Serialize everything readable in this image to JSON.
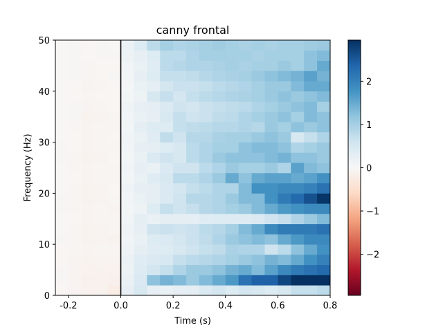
{
  "chart_data": {
    "type": "heatmap",
    "title": "canny frontal",
    "xlabel": "Time (s)",
    "ylabel": "Frequency (Hz)",
    "xlim": [
      -0.25,
      0.8
    ],
    "ylim": [
      0,
      50
    ],
    "x_ticks": [
      "-0.2",
      "0.0",
      "0.2",
      "0.4",
      "0.6",
      "0.8"
    ],
    "x_tick_values": [
      -0.2,
      0.0,
      0.2,
      0.4,
      0.6,
      0.8
    ],
    "y_ticks": [
      "0",
      "10",
      "20",
      "30",
      "40",
      "50"
    ],
    "y_tick_values": [
      0,
      10,
      20,
      30,
      40,
      50
    ],
    "colorbar": {
      "colormap": "RdBu_r",
      "vmin": -2.95,
      "vmax": 2.95,
      "ticks": [
        "−2",
        "−1",
        "0",
        "1",
        "2"
      ],
      "tick_values": [
        -2,
        -1,
        0,
        1,
        2
      ]
    },
    "vline_x": 0.0,
    "time_bin_width": 0.05,
    "freq_bin_height": 2,
    "columns": [
      {
        "t0": -0.25,
        "values": [
          -0.05,
          -0.04,
          -0.04,
          -0.05,
          -0.05,
          -0.04,
          -0.03,
          -0.03,
          -0.04,
          -0.04,
          -0.03,
          -0.03,
          -0.03,
          -0.04,
          -0.04,
          -0.03,
          -0.03,
          -0.02,
          -0.02,
          -0.03,
          -0.03,
          -0.02,
          -0.02,
          -0.02,
          -0.02
        ]
      },
      {
        "t0": -0.2,
        "values": [
          -0.08,
          -0.09,
          -0.08,
          -0.08,
          -0.07,
          -0.07,
          -0.06,
          -0.05,
          -0.06,
          -0.07,
          -0.06,
          -0.05,
          -0.06,
          -0.06,
          -0.05,
          -0.05,
          -0.06,
          -0.04,
          -0.04,
          -0.05,
          -0.05,
          -0.04,
          -0.04,
          -0.04,
          -0.04
        ]
      },
      {
        "t0": -0.15,
        "values": [
          -0.12,
          -0.14,
          -0.12,
          -0.1,
          -0.09,
          -0.1,
          -0.11,
          -0.09,
          -0.08,
          -0.1,
          -0.1,
          -0.08,
          -0.09,
          -0.1,
          -0.09,
          -0.08,
          -0.09,
          -0.1,
          -0.08,
          -0.07,
          -0.08,
          -0.06,
          -0.06,
          -0.05,
          -0.05
        ]
      },
      {
        "t0": -0.1,
        "values": [
          -0.1,
          -0.12,
          -0.1,
          -0.08,
          -0.07,
          -0.08,
          -0.09,
          -0.07,
          -0.06,
          -0.08,
          -0.08,
          -0.06,
          -0.07,
          -0.08,
          -0.07,
          -0.06,
          -0.07,
          -0.08,
          -0.06,
          -0.05,
          -0.06,
          -0.05,
          -0.05,
          -0.04,
          -0.04
        ]
      },
      {
        "t0": -0.05,
        "values": [
          -0.22,
          -0.14,
          -0.12,
          -0.09,
          -0.07,
          -0.1,
          -0.07,
          -0.06,
          -0.08,
          -0.06,
          -0.05,
          -0.07,
          -0.07,
          -0.05,
          -0.06,
          -0.05,
          -0.06,
          -0.07,
          -0.05,
          -0.05,
          -0.05,
          -0.04,
          -0.05,
          -0.04,
          -0.03
        ]
      },
      {
        "t0": 0.0,
        "values": [
          0.25,
          0.2,
          0.15,
          0.18,
          0.12,
          0.1,
          0.12,
          0.1,
          0.08,
          0.1,
          0.12,
          0.08,
          0.1,
          0.08,
          0.1,
          0.12,
          0.08,
          0.1,
          0.12,
          0.08,
          0.06,
          0.08,
          0.1,
          0.15,
          0.18
        ]
      },
      {
        "t0": 0.05,
        "values": [
          0.5,
          0.45,
          0.4,
          0.35,
          0.3,
          0.2,
          0.25,
          0.3,
          0.15,
          0.2,
          0.25,
          0.2,
          0.25,
          0.2,
          0.25,
          0.2,
          0.3,
          0.2,
          0.25,
          0.15,
          0.2,
          0.25,
          0.2,
          0.25,
          0.4
        ]
      },
      {
        "t0": 0.1,
        "values": [
          0.25,
          1.2,
          0.55,
          0.45,
          0.35,
          0.4,
          0.6,
          0.2,
          0.4,
          0.3,
          0.3,
          0.35,
          0.2,
          0.45,
          0.3,
          0.35,
          0.4,
          0.25,
          0.3,
          0.5,
          0.3,
          0.4,
          0.35,
          0.4,
          0.8
        ]
      },
      {
        "t0": 0.15,
        "values": [
          0.2,
          1.4,
          0.7,
          0.5,
          0.4,
          0.45,
          0.65,
          0.3,
          0.7,
          0.45,
          0.45,
          0.5,
          0.45,
          0.6,
          0.4,
          0.75,
          0.4,
          0.5,
          0.45,
          0.7,
          0.55,
          0.7,
          0.8,
          0.8,
          1.0
        ]
      },
      {
        "t0": 0.2,
        "values": [
          0.25,
          1.3,
          0.9,
          0.7,
          0.5,
          0.55,
          0.6,
          0.3,
          0.6,
          0.6,
          0.55,
          0.8,
          0.6,
          0.5,
          0.5,
          0.6,
          0.7,
          0.7,
          0.6,
          0.55,
          0.65,
          0.7,
          0.85,
          0.8,
          0.9
        ]
      },
      {
        "t0": 0.25,
        "values": [
          0.3,
          1.1,
          1.1,
          0.8,
          0.6,
          0.65,
          0.65,
          0.3,
          0.7,
          0.85,
          0.7,
          0.8,
          0.6,
          0.8,
          0.8,
          0.85,
          0.75,
          0.6,
          0.55,
          0.7,
          0.65,
          0.75,
          0.9,
          0.9,
          0.95
        ]
      },
      {
        "t0": 0.3,
        "values": [
          0.45,
          1.3,
          1.1,
          0.85,
          0.7,
          0.75,
          0.8,
          0.35,
          0.85,
          0.85,
          0.8,
          0.9,
          0.8,
          0.9,
          0.9,
          0.85,
          0.8,
          0.65,
          0.65,
          0.8,
          0.7,
          0.85,
          0.9,
          1.0,
          1.0
        ]
      },
      {
        "t0": 0.35,
        "values": [
          0.55,
          1.5,
          1.2,
          0.9,
          0.75,
          0.9,
          0.85,
          0.4,
          0.9,
          0.9,
          0.9,
          1.1,
          0.9,
          1.1,
          1.0,
          0.95,
          0.85,
          0.75,
          0.7,
          0.85,
          0.8,
          0.9,
          0.95,
          1.0,
          1.05
        ]
      },
      {
        "t0": 0.4,
        "values": [
          0.4,
          1.7,
          1.4,
          1.0,
          0.95,
          1.1,
          1.0,
          0.4,
          1.0,
          1.1,
          0.9,
          1.5,
          1.1,
          1.2,
          1.0,
          1.0,
          0.85,
          0.8,
          0.75,
          0.9,
          0.85,
          0.95,
          1.0,
          1.0,
          1.0
        ]
      },
      {
        "t0": 0.45,
        "values": [
          0.55,
          2.2,
          1.5,
          1.1,
          0.9,
          1.2,
          1.3,
          0.4,
          1.1,
          1.3,
          1.3,
          1.2,
          1.0,
          1.2,
          1.2,
          1.0,
          0.9,
          0.9,
          0.8,
          0.95,
          0.9,
          1.0,
          0.95,
          1.0,
          0.95
        ]
      },
      {
        "t0": 0.5,
        "values": [
          0.5,
          2.4,
          1.3,
          1.2,
          0.9,
          1.3,
          1.5,
          0.45,
          1.3,
          1.3,
          1.8,
          1.5,
          1.0,
          1.2,
          1.3,
          1.1,
          0.85,
          1.0,
          0.9,
          1.0,
          1.0,
          1.1,
          1.0,
          0.95,
          1.0
        ]
      },
      {
        "t0": 0.55,
        "values": [
          0.4,
          2.4,
          1.6,
          1.4,
          0.6,
          1.2,
          1.9,
          0.6,
          1.5,
          1.8,
          1.8,
          1.6,
          1.1,
          1.3,
          1.3,
          1.2,
          1.1,
          1.1,
          1.0,
          1.1,
          1.1,
          1.2,
          1.0,
          1.0,
          0.95
        ]
      },
      {
        "t0": 0.6,
        "values": [
          0.5,
          2.7,
          1.9,
          1.3,
          0.8,
          1.5,
          2.1,
          0.7,
          1.7,
          2.1,
          1.9,
          1.6,
          0.9,
          1.4,
          1.2,
          1.1,
          1.0,
          1.2,
          1.1,
          1.2,
          1.1,
          1.3,
          1.1,
          1.0,
          1.0
        ]
      },
      {
        "t0": 0.65,
        "values": [
          0.7,
          2.95,
          2.1,
          1.5,
          1.2,
          1.7,
          2.1,
          0.9,
          1.8,
          2.3,
          1.9,
          1.5,
          1.6,
          1.2,
          0.9,
          0.5,
          1.2,
          1.0,
          1.2,
          1.1,
          1.3,
          1.4,
          1.0,
          1.0,
          1.0
        ]
      },
      {
        "t0": 0.7,
        "values": [
          0.7,
          2.95,
          2.2,
          1.8,
          1.5,
          1.9,
          2.1,
          1.1,
          1.9,
          2.6,
          2.0,
          1.6,
          1.3,
          1.2,
          1.0,
          0.7,
          1.1,
          1.3,
          1.3,
          1.2,
          1.5,
          1.6,
          1.2,
          1.2,
          1.05
        ]
      },
      {
        "t0": 0.75,
        "values": [
          0.8,
          2.95,
          2.3,
          2.0,
          1.8,
          1.9,
          2.2,
          1.3,
          1.9,
          2.9,
          2.2,
          1.8,
          1.2,
          1.1,
          1.1,
          0.9,
          1.2,
          1.2,
          1.0,
          1.3,
          1.5,
          1.4,
          1.5,
          1.3,
          1.1
        ]
      }
    ]
  }
}
